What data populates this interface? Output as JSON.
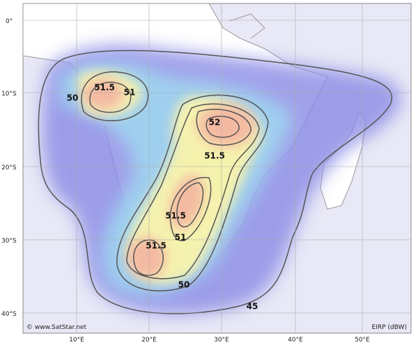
{
  "map": {
    "lat_labels": [
      "0°",
      "10°S",
      "20°S",
      "30°S",
      "40°S"
    ],
    "lon_labels": [
      "10°E",
      "20°E",
      "30°E",
      "40°E",
      "50°E"
    ],
    "contour_labels": [
      "50",
      "51.5",
      "51",
      "52",
      "51.5",
      "51.5",
      "51",
      "51.5",
      "50",
      "45"
    ],
    "credit": "© www.SatStar.net",
    "legend": "EIRP (dBW)"
  }
}
